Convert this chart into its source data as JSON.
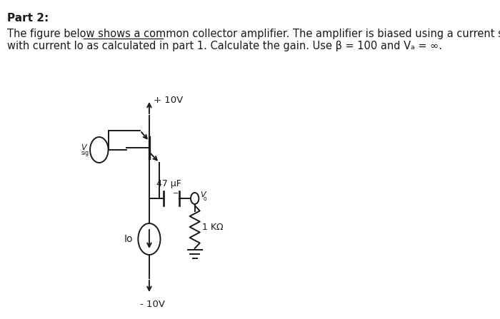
{
  "title": "Part 2:",
  "line1a": "The figure below shows a ",
  "line1b": "common collector amplifier",
  "line1c": ". The amplifier is biased using a current source",
  "line2": "with current Io as calculated in part 1. Calculate the gain. Use β = 100 and Vₐ = ∞.",
  "bg_color": "#ffffff",
  "text_color": "#1a1a1a",
  "font_size_title": 11,
  "font_size_body": 10.5,
  "vcc_label": "+ 10V",
  "vee_label": "- 10V",
  "cap_label": "47 μF",
  "res_label": "1 KΩ",
  "io_label": "Io"
}
